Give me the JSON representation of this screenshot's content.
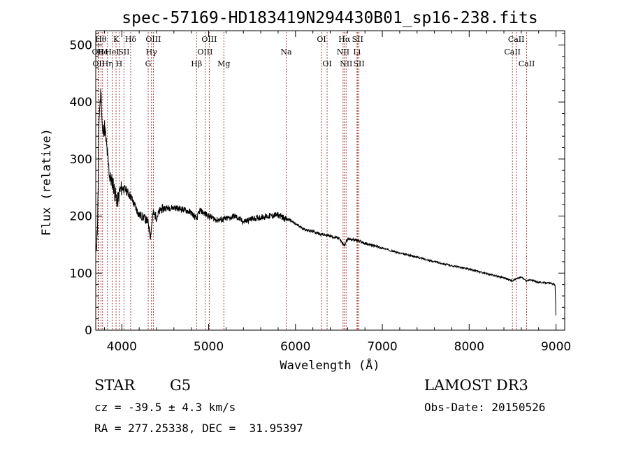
{
  "chart_data": {
    "type": "line",
    "title": "spec-57169-HD183419N294430B01_sp16-238.fits",
    "xlabel": "Wavelength (Å)",
    "ylabel": "Flux (relative)",
    "xlim": [
      3700,
      9100
    ],
    "ylim": [
      0,
      525
    ],
    "xticks": [
      4000,
      5000,
      6000,
      7000,
      8000,
      9000
    ],
    "yticks": [
      0,
      100,
      200,
      300,
      400,
      500
    ],
    "series": [
      {
        "name": "spectrum",
        "x": [
          3700,
          3720,
          3740,
          3760,
          3780,
          3800,
          3820,
          3840,
          3860,
          3880,
          3900,
          3920,
          3950,
          3970,
          4000,
          4050,
          4100,
          4150,
          4200,
          4250,
          4300,
          4330,
          4360,
          4400,
          4450,
          4500,
          4600,
          4700,
          4800,
          4861,
          4900,
          5000,
          5100,
          5200,
          5300,
          5400,
          5500,
          5600,
          5700,
          5800,
          5890,
          5950,
          6000,
          6100,
          6200,
          6300,
          6400,
          6500,
          6563,
          6600,
          6700,
          6800,
          6900,
          7000,
          7200,
          7400,
          7600,
          7800,
          8000,
          8200,
          8400,
          8498,
          8542,
          8600,
          8662,
          8700,
          8800,
          8900,
          8990,
          9000
        ],
        "y": [
          130,
          180,
          380,
          420,
          340,
          360,
          330,
          300,
          270,
          262,
          258,
          240,
          225,
          240,
          250,
          245,
          235,
          218,
          202,
          198,
          190,
          165,
          205,
          198,
          212,
          214,
          215,
          212,
          206,
          195,
          210,
          200,
          193,
          195,
          200,
          190,
          195,
          198,
          200,
          202,
          195,
          192,
          186,
          177,
          173,
          168,
          165,
          161,
          148,
          160,
          158,
          152,
          148,
          144,
          135,
          128,
          120,
          113,
          107,
          99,
          92,
          86,
          90,
          93,
          86,
          88,
          84,
          83,
          80,
          12
        ]
      }
    ],
    "lines": [
      {
        "x": 3727,
        "label": "OII",
        "row": 1
      },
      {
        "x": 3734,
        "label": "OII",
        "row": 2
      },
      {
        "x": 3760,
        "label": "Hθ",
        "row": 0
      },
      {
        "x": 3779,
        "label": "He",
        "row": 1
      },
      {
        "x": 3835,
        "label": "Hη",
        "row": 2
      },
      {
        "x": 3889,
        "label": "HeI",
        "row": 1
      },
      {
        "x": 3934,
        "label": "K",
        "row": 0
      },
      {
        "x": 3969,
        "label": "H",
        "row": 2
      },
      {
        "x": 4025,
        "label": "SII",
        "row": 1
      },
      {
        "x": 4102,
        "label": "Hδ",
        "row": 0
      },
      {
        "x": 4304,
        "label": "G",
        "row": 2
      },
      {
        "x": 4341,
        "label": "Hγ",
        "row": 1
      },
      {
        "x": 4363,
        "label": "OIII",
        "row": 0
      },
      {
        "x": 4861,
        "label": "Hβ",
        "row": 2
      },
      {
        "x": 4959,
        "label": "OIII",
        "row": 1
      },
      {
        "x": 5007,
        "label": "OIII",
        "row": 0
      },
      {
        "x": 5175,
        "label": "Mg",
        "row": 2
      },
      {
        "x": 5893,
        "label": "Na",
        "row": 1
      },
      {
        "x": 6300,
        "label": "OI",
        "row": 0
      },
      {
        "x": 6364,
        "label": "OI",
        "row": 2
      },
      {
        "x": 6548,
        "label": "NII",
        "row": 1
      },
      {
        "x": 6563,
        "label": "Hα",
        "row": 0
      },
      {
        "x": 6583,
        "label": "NII",
        "row": 2
      },
      {
        "x": 6708,
        "label": "Li",
        "row": 1
      },
      {
        "x": 6716,
        "label": "SII",
        "row": 0
      },
      {
        "x": 6731,
        "label": "SII",
        "row": 2
      },
      {
        "x": 8498,
        "label": "CaII",
        "row": 1
      },
      {
        "x": 8542,
        "label": "CaII",
        "row": 0
      },
      {
        "x": 8662,
        "label": "CaII",
        "row": 2
      }
    ]
  },
  "info": {
    "class": "STAR",
    "subclass": "G5",
    "survey": "LAMOST DR3",
    "cz": "cz = -39.5 ± 4.3 km/s",
    "obs_date": "Obs-Date: 20150526",
    "coords": "RA = 277.25338, DEC =  31.95397"
  },
  "colors": {
    "line_marker": "#a0302f",
    "spectrum": "#000000",
    "axes": "#000000"
  }
}
